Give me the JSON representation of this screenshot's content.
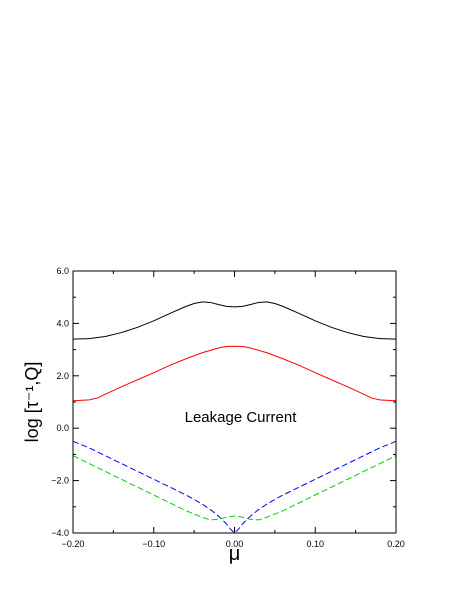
{
  "chart_data": {
    "type": "line",
    "xlabel": "μ",
    "ylabel": "log [τ⁻¹,Q]",
    "xlim": [
      -0.2,
      0.2
    ],
    "ylim": [
      -4.0,
      6.0
    ],
    "x_ticks": [
      -0.2,
      -0.1,
      0.0,
      0.1,
      0.2
    ],
    "x_tick_labels": [
      "−0.20",
      "−0.10",
      "0.00",
      "0.10",
      "0.20"
    ],
    "y_ticks": [
      -4.0,
      -2.0,
      0.0,
      2.0,
      4.0,
      6.0
    ],
    "y_tick_labels": [
      "−4.0",
      "−2.0",
      "0.0",
      "2.0",
      "4.0",
      "6.0"
    ],
    "grid": false,
    "annotations": [
      {
        "text": "Leakage Current",
        "x": 0.0,
        "y": 0.2
      }
    ],
    "series": [
      {
        "color": "#000000",
        "style": "solid",
        "x": [
          -0.2,
          -0.18,
          -0.16,
          -0.14,
          -0.12,
          -0.1,
          -0.08,
          -0.06,
          -0.05,
          -0.04,
          -0.03,
          -0.02,
          -0.01,
          0.0,
          0.01,
          0.02,
          0.03,
          0.04,
          0.05,
          0.06,
          0.08,
          0.1,
          0.12,
          0.14,
          0.16,
          0.18,
          0.2
        ],
        "y": [
          3.4,
          3.42,
          3.5,
          3.65,
          3.85,
          4.1,
          4.38,
          4.65,
          4.76,
          4.82,
          4.8,
          4.72,
          4.65,
          4.63,
          4.65,
          4.72,
          4.8,
          4.82,
          4.76,
          4.65,
          4.38,
          4.1,
          3.85,
          3.65,
          3.5,
          3.42,
          3.4
        ]
      },
      {
        "color": "#ff0000",
        "style": "solid",
        "x": [
          -0.2,
          -0.18,
          -0.17,
          -0.16,
          -0.14,
          -0.12,
          -0.1,
          -0.08,
          -0.06,
          -0.04,
          -0.02,
          -0.01,
          0.0,
          0.01,
          0.02,
          0.04,
          0.06,
          0.08,
          0.1,
          0.12,
          0.14,
          0.16,
          0.17,
          0.18,
          0.2
        ],
        "y": [
          1.05,
          1.08,
          1.15,
          1.3,
          1.58,
          1.85,
          2.12,
          2.4,
          2.65,
          2.88,
          3.06,
          3.12,
          3.13,
          3.12,
          3.06,
          2.88,
          2.65,
          2.4,
          2.12,
          1.85,
          1.58,
          1.3,
          1.15,
          1.08,
          1.05
        ]
      },
      {
        "color": "#0000ff",
        "style": "dashed",
        "x": [
          -0.2,
          -0.18,
          -0.16,
          -0.14,
          -0.12,
          -0.1,
          -0.08,
          -0.06,
          -0.05,
          -0.04,
          -0.03,
          -0.02,
          -0.01,
          -0.005,
          0.0,
          0.005,
          0.01,
          0.02,
          0.03,
          0.04,
          0.05,
          0.06,
          0.08,
          0.1,
          0.12,
          0.14,
          0.16,
          0.18,
          0.2
        ],
        "y": [
          -0.5,
          -0.75,
          -1.05,
          -1.35,
          -1.65,
          -1.95,
          -2.25,
          -2.55,
          -2.72,
          -2.9,
          -3.1,
          -3.35,
          -3.65,
          -3.85,
          -4.0,
          -3.85,
          -3.65,
          -3.35,
          -3.1,
          -2.9,
          -2.72,
          -2.55,
          -2.25,
          -1.95,
          -1.65,
          -1.35,
          -1.05,
          -0.75,
          -0.5
        ]
      },
      {
        "color": "#00cc00",
        "style": "dashed",
        "x": [
          -0.2,
          -0.18,
          -0.16,
          -0.14,
          -0.12,
          -0.1,
          -0.08,
          -0.06,
          -0.04,
          -0.03,
          -0.02,
          -0.01,
          0.0,
          0.01,
          0.02,
          0.03,
          0.04,
          0.06,
          0.08,
          0.1,
          0.12,
          0.14,
          0.16,
          0.18,
          0.2
        ],
        "y": [
          -1.05,
          -1.35,
          -1.65,
          -1.95,
          -2.25,
          -2.55,
          -2.85,
          -3.15,
          -3.4,
          -3.5,
          -3.48,
          -3.4,
          -3.35,
          -3.4,
          -3.48,
          -3.5,
          -3.4,
          -3.15,
          -2.85,
          -2.55,
          -2.25,
          -1.95,
          -1.65,
          -1.35,
          -1.05
        ]
      }
    ]
  }
}
